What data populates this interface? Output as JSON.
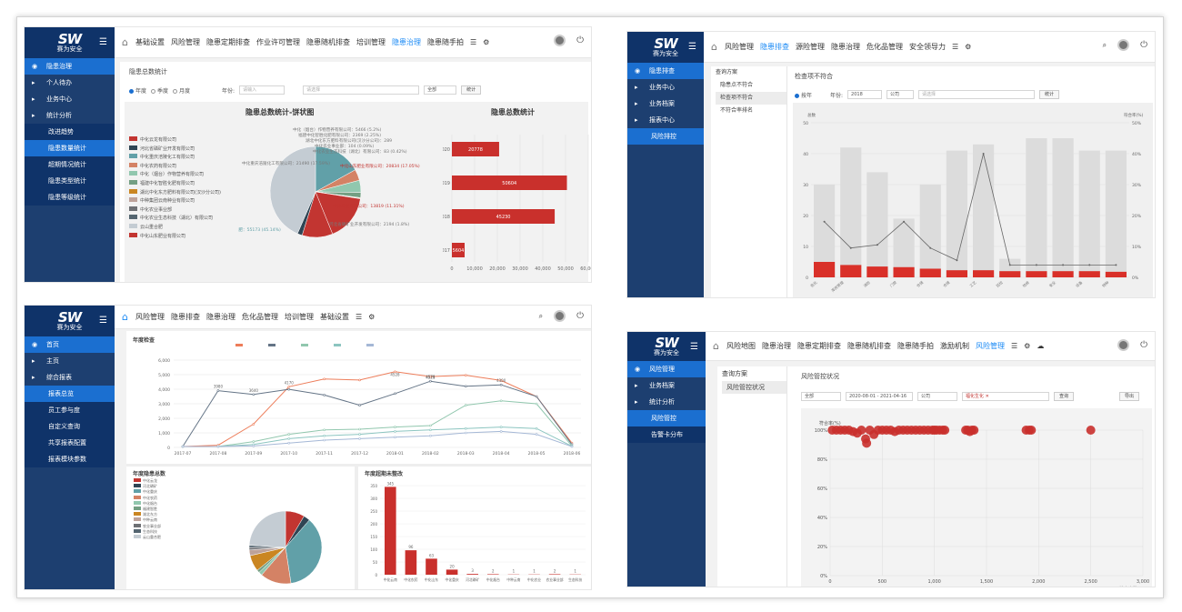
{
  "brand": {
    "logo": "SW",
    "name": "赛为安全"
  },
  "tl": {
    "nav": [
      "基础设置",
      "风险管理",
      "隐患定期排查",
      "作业许可管理",
      "隐患随机排查",
      "培训管理",
      "隐患治理",
      "隐患随手拍"
    ],
    "active_nav": 6,
    "sidebar": [
      {
        "label": "隐患治理",
        "type": "primary"
      },
      {
        "label": "个人待办",
        "type": "item"
      },
      {
        "label": "业务中心",
        "type": "item"
      },
      {
        "label": "统计分析",
        "type": "item"
      },
      {
        "label": "改进趋势",
        "type": "sub"
      },
      {
        "label": "隐患数量统计",
        "type": "sub",
        "active": true
      },
      {
        "label": "超期情况统计",
        "type": "sub"
      },
      {
        "label": "隐患类型统计",
        "type": "sub"
      },
      {
        "label": "隐患等级统计",
        "type": "sub"
      }
    ],
    "page_title": "隐患总数统计",
    "radios": [
      "年度",
      "季度",
      "月度"
    ],
    "year_label": "年份:",
    "year_placeholder": "请输入",
    "company_placeholder": "请选择",
    "scope": "全部",
    "stat_btn": "统计",
    "pie_title": "隐患总数统计-饼状图",
    "bar_title": "隐患总数统计",
    "legend": [
      {
        "name": "中化云龙有限公司",
        "color": "#c23531"
      },
      {
        "name": "河北省磷矿业开发有限公司",
        "color": "#2f4554"
      },
      {
        "name": "中化重庆涪陵化工有限公司",
        "color": "#61a0a8"
      },
      {
        "name": "中化农药有限公司",
        "color": "#d48265"
      },
      {
        "name": "中化（烟台）作物营养有限公司",
        "color": "#91c7ae"
      },
      {
        "name": "福建中化智胜化肥有限公司",
        "color": "#749f83"
      },
      {
        "name": "湖北中化东方肥料有限公司(汉沙分公司)",
        "color": "#ca8622"
      },
      {
        "name": "中种集团云南种业有限公司",
        "color": "#bda29a"
      },
      {
        "name": "中化农业事业部",
        "color": "#6e7074"
      },
      {
        "name": "中化农业生态科技（湖北）有限公司",
        "color": "#546570"
      },
      {
        "name": "云山重合肥",
        "color": "#c4ccd3"
      },
      {
        "name": "中化山东肥业有限公司",
        "color": "#c23531"
      }
    ],
    "pie_labels": [
      "中化（烟台）作物营养有限公司：5466 (5.2%)",
      "福建中化智胜化肥有限公司：2369 (2.25%)",
      "湖北中化东方肥料有限公司(汉沙分公司)：289",
      "中化农业事业部：104 (0.09%)",
      "中化农业生态科技（湖北）有限公司：83 (0.42%)",
      "中化重庆涪陵化工有限公司：21490 (17.59%)",
      "中化山东肥业有限公司：20834 (17.05%)",
      "中化云龙有限公司：13819 (11.31%)",
      "河北省磷矿业开发有限公司：2194 (1.8%)",
      "云山重合肥：55173 (45.14%)"
    ],
    "chart_data": {
      "type": "bar",
      "orientation": "horizontal",
      "title": "隐患总数统计",
      "categories": [
        "2020",
        "2019",
        "2018",
        "2017"
      ],
      "values": [
        20778,
        50604,
        45230,
        5604
      ],
      "xlim": [
        0,
        60000
      ],
      "xticks": [
        "0",
        "10,000",
        "20,000",
        "30,000",
        "40,000",
        "50,000",
        "60,000"
      ]
    }
  },
  "tr": {
    "nav": [
      "风险管理",
      "隐患排查",
      "源险管理",
      "隐患治理",
      "危化品管理",
      "安全领导力"
    ],
    "active_nav": 1,
    "sidebar": [
      {
        "label": "隐患排查",
        "type": "primary"
      },
      {
        "label": "业务中心",
        "type": "item"
      },
      {
        "label": "业务档案",
        "type": "item"
      },
      {
        "label": "报表中心",
        "type": "item"
      },
      {
        "label": "风险排控",
        "type": "sub",
        "active": true
      }
    ],
    "scheme_title": "查询方案",
    "schemes": [
      "隐患点不符合",
      "检查项不符合",
      "不符合率排名"
    ],
    "selected_scheme": 1,
    "page_title": "检查项不符合",
    "radio": "按年",
    "year_label": "年份:",
    "year_value": "2018",
    "scope": "公司",
    "company_placeholder": "请选择",
    "stat_btn": "统计",
    "y_left_label": "总数",
    "y_right_label": "符合率(%)",
    "chart_data": {
      "type": "bar",
      "y_left_range": [
        0,
        50
      ],
      "y_right_range": [
        0,
        50
      ],
      "y_left_ticks": [
        "0",
        "10",
        "20",
        "30",
        "40",
        "50"
      ],
      "y_right_ticks": [
        "0%",
        "10%",
        "20%",
        "30%",
        "40%",
        "50%"
      ],
      "categories": [
        "危化",
        "库房管理",
        "消防",
        "门禁",
        "仓储",
        "仓储",
        "工艺",
        "巡检",
        "检修",
        "安全",
        "设备",
        "特种"
      ],
      "series": [
        {
          "values": [
            30,
            42,
            34,
            19,
            30,
            41,
            43,
            6,
            45,
            45,
            41,
            41
          ]
        },
        {
          "values": [
            5,
            4,
            3.5,
            3.3,
            2.8,
            2.3,
            2.3,
            2,
            2,
            2,
            2,
            1.8
          ]
        },
        {
          "values": [
            18,
            9.5,
            10.5,
            18,
            9.5,
            5.5,
            40,
            4,
            4,
            4,
            4,
            4
          ]
        }
      ]
    }
  },
  "bl": {
    "nav": [
      "风险管理",
      "隐患排查",
      "隐患治理",
      "危化品管理",
      "培训管理",
      "基础设置"
    ],
    "active_nav": -1,
    "sidebar": [
      {
        "label": "首页",
        "type": "primary"
      },
      {
        "label": "主页",
        "type": "item"
      },
      {
        "label": "综合报表",
        "type": "item"
      },
      {
        "label": "报表总览",
        "type": "sub",
        "active": true
      },
      {
        "label": "员工参与度",
        "type": "sub"
      },
      {
        "label": "自定义查询",
        "type": "sub"
      },
      {
        "label": "共享报表配置",
        "type": "sub"
      },
      {
        "label": "报表模块参数",
        "type": "sub"
      }
    ],
    "line_title": "年度检查",
    "pie_title": "年度隐患总数",
    "bar_title": "年度超期未整改",
    "chart_data": [
      {
        "type": "line",
        "title": "年度检查",
        "x": [
          "2017-07",
          "2017-08",
          "2017-09",
          "2017-10",
          "2017-11",
          "2017-12",
          "2018-01",
          "2018-02",
          "2018-03",
          "2018-04",
          "2018-05",
          "2018-06"
        ],
        "ylim": [
          0,
          6000
        ],
        "yticks": [
          "0",
          "1,000",
          "2,000",
          "3,000",
          "4,000",
          "5,000",
          "6,000"
        ],
        "series": [
          {
            "color": "#ed7d5a",
            "values": [
              60,
              150,
              1600,
              4170,
              4700,
              4630,
              5200,
              4870,
              4960,
              4600,
              3500,
              300
            ]
          },
          {
            "color": "#647486",
            "values": [
              60,
              3900,
              3640,
              3990,
              3600,
              2900,
              3700,
              4550,
              4200,
              4300,
              3500,
              200
            ]
          },
          {
            "color": "#91c7ae",
            "values": [
              60,
              60,
              400,
              900,
              1200,
              1250,
              1400,
              1500,
              2900,
              3200,
              3000,
              100
            ]
          },
          {
            "color": "#8cc5c0",
            "values": [
              60,
              60,
              200,
              600,
              800,
              900,
              1100,
              1200,
              1300,
              1400,
              1300,
              80
            ]
          },
          {
            "color": "#a5b8d6",
            "values": [
              60,
              60,
              100,
              300,
              500,
              600,
              700,
              800,
              1000,
              1100,
              900,
              60
            ]
          }
        ],
        "point_labels": [
          "3980",
          "3640",
          "4170",
          "4528",
          "4578",
          "4521",
          "4300"
        ]
      },
      {
        "type": "pie",
        "title": "年度隐患总数",
        "slices": [
          {
            "label": "中化云龙",
            "value": 8.53,
            "color": "#c23531"
          },
          {
            "label": "河北磷矿",
            "value": 2.89,
            "color": "#2f4554"
          },
          {
            "label": "中化重庆",
            "value": 36.17,
            "color": "#61a0a8"
          },
          {
            "label": "中化农药",
            "value": 13.79,
            "color": "#d48265"
          },
          {
            "label": "中化烟台",
            "value": 1.6,
            "color": "#91c7ae"
          },
          {
            "label": "福建智胜",
            "value": 1.2,
            "color": "#749f83"
          },
          {
            "label": "湖北东方",
            "value": 7.2,
            "color": "#ca8622"
          },
          {
            "label": "中种云南",
            "value": 2.5,
            "color": "#bda29a"
          },
          {
            "label": "农业事业部",
            "value": 1.1,
            "color": "#6e7074"
          },
          {
            "label": "生态科技",
            "value": 1.0,
            "color": "#546570"
          },
          {
            "label": "云山重合肥",
            "value": 24.02,
            "color": "#c4ccd3"
          }
        ]
      },
      {
        "type": "bar",
        "title": "年度超期未整改",
        "categories": [
          "中化云南",
          "中化农药",
          "中化山东",
          "中化重庆",
          "河北磷矿",
          "中化烟台",
          "中种云南",
          "中化农业",
          "农业事业部",
          "生态科技"
        ],
        "values": [
          345,
          96,
          63,
          20,
          3,
          2,
          1,
          1,
          2,
          1
        ],
        "ylim": [
          0,
          350
        ],
        "yticks": [
          "0",
          "50",
          "100",
          "150",
          "200",
          "250",
          "300",
          "350"
        ]
      }
    ]
  },
  "br": {
    "nav": [
      "风险地图",
      "隐患治理",
      "隐患定期排查",
      "隐患随机排查",
      "隐患随手拍",
      "激励机制",
      "风险管理"
    ],
    "active_nav": 6,
    "sidebar": [
      {
        "label": "风险管理",
        "type": "primary"
      },
      {
        "label": "业务档案",
        "type": "item"
      },
      {
        "label": "统计分析",
        "type": "item"
      },
      {
        "label": "风险管控",
        "type": "sub",
        "active": true
      },
      {
        "label": "告警卡分布",
        "type": "sub"
      }
    ],
    "scheme_title": "查询方案",
    "schemes": [
      "风险管控状况"
    ],
    "page_title": "风险管控状况",
    "scope": "全部",
    "date_range": "2020-08-01 - 2021-04-16",
    "company": "公司",
    "tag": "福化生化",
    "query_btn": "查询",
    "export_btn": "导出",
    "y_label": "符合率(%)",
    "x_label": "检查次数",
    "chart_data": {
      "type": "scatter",
      "xlim": [
        0,
        3000
      ],
      "ylim": [
        0,
        100
      ],
      "xticks": [
        "0",
        "500",
        "1,000",
        "1,500",
        "2,000",
        "2,500",
        "3,000"
      ],
      "yticks": [
        "0%",
        "20%",
        "40%",
        "60%",
        "80%",
        "100%"
      ],
      "points": [
        [
          20,
          100
        ],
        [
          60,
          100
        ],
        [
          100,
          100
        ],
        [
          140,
          100
        ],
        [
          180,
          100
        ],
        [
          220,
          99
        ],
        [
          260,
          98
        ],
        [
          300,
          100
        ],
        [
          340,
          94
        ],
        [
          380,
          100
        ],
        [
          420,
          97
        ],
        [
          460,
          100
        ],
        [
          500,
          100
        ],
        [
          540,
          100
        ],
        [
          580,
          100
        ],
        [
          620,
          99
        ],
        [
          660,
          100
        ],
        [
          700,
          100
        ],
        [
          740,
          100
        ],
        [
          780,
          100
        ],
        [
          820,
          100
        ],
        [
          860,
          100
        ],
        [
          900,
          100
        ],
        [
          940,
          100
        ],
        [
          980,
          100
        ],
        [
          1000,
          100
        ],
        [
          1020,
          100
        ],
        [
          1050,
          100
        ],
        [
          1080,
          100
        ],
        [
          1100,
          100
        ],
        [
          1300,
          100
        ],
        [
          1320,
          100
        ],
        [
          1340,
          99
        ],
        [
          1360,
          100
        ],
        [
          1380,
          100
        ],
        [
          1880,
          100
        ],
        [
          1910,
          100
        ],
        [
          1930,
          100
        ],
        [
          2500,
          100
        ],
        [
          350,
          91
        ]
      ]
    }
  },
  "colors": {
    "sidebar": "#1d3f70",
    "sidebar_dark": "#0f3369",
    "accent": "#1b6fd0",
    "bar_red": "#c9302c"
  }
}
